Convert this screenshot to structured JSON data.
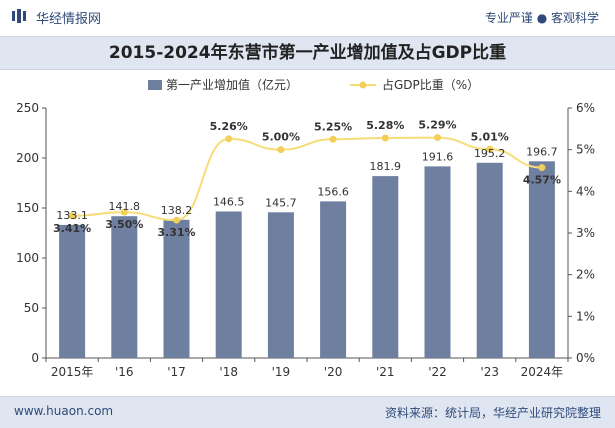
{
  "header": {
    "brand": "华经情报网",
    "tagline": "专业严谨 ● 客观科学"
  },
  "footer": {
    "website": "www.huaon.com",
    "source": "资料来源：统计局，华经产业研究院整理"
  },
  "colors": {
    "bar": "#6f7f9f",
    "line": "#f7dc7a",
    "marker": "#f2cf5a",
    "brand": "#2f4a7a"
  },
  "chart_data": {
    "type": "bar",
    "title": "2015-2024年东营市第一产业增加值及占GDP比重",
    "categories": [
      "2015年",
      "'16",
      "'17",
      "'18",
      "'19",
      "'20",
      "'21",
      "'22",
      "'23",
      "2024年"
    ],
    "series": [
      {
        "name": "第一产业增加值（亿元）",
        "type": "bar",
        "axis": "left",
        "values": [
          133.1,
          141.8,
          138.2,
          146.5,
          145.7,
          156.6,
          181.9,
          191.6,
          195.2,
          196.7
        ],
        "labels": [
          "133.1",
          "141.8",
          "138.2",
          "146.5",
          "145.7",
          "156.6",
          "181.9",
          "191.6",
          "195.2",
          "196.7"
        ]
      },
      {
        "name": "占GDP比重（%）",
        "type": "line",
        "axis": "right",
        "values": [
          3.41,
          3.5,
          3.31,
          5.26,
          5.0,
          5.25,
          5.28,
          5.29,
          5.01,
          4.57
        ],
        "labels": [
          "3.41%",
          "3.50%",
          "3.31%",
          "5.26%",
          "5.00%",
          "5.25%",
          "5.28%",
          "5.29%",
          "5.01%",
          "4.57%"
        ]
      }
    ],
    "y_left": {
      "lim": [
        0,
        250
      ],
      "ticks": [
        "0",
        "50",
        "100",
        "150",
        "200",
        "250"
      ]
    },
    "y_right": {
      "lim": [
        0,
        6
      ],
      "ticks": [
        "0%",
        "1%",
        "2%",
        "3%",
        "4%",
        "5%",
        "6%"
      ]
    },
    "legend_position": "top-center",
    "grid": false
  }
}
